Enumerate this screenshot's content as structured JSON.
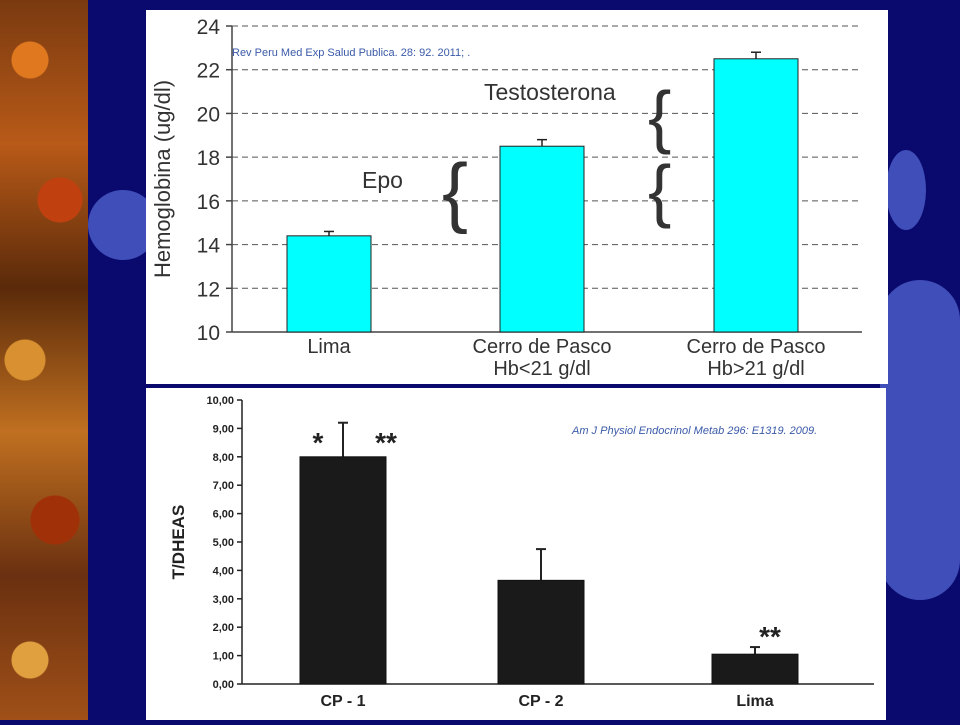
{
  "chart_data": [
    {
      "type": "bar",
      "citation": "Rev Peru Med Exp Salud Publica. 28: 92. 2011; .",
      "ylabel": "Hemoglobina (ug/dl)",
      "categories": [
        "Lima",
        "Cerro de Pasco\nHb<21 g/dl",
        "Cerro de Pasco\nHb>21 g/dl"
      ],
      "values": [
        14.4,
        18.5,
        22.5
      ],
      "errors": [
        0.2,
        0.3,
        0.3
      ],
      "ylim": [
        10,
        24
      ],
      "yticks": [
        10,
        12,
        14,
        16,
        18,
        20,
        22,
        24
      ],
      "grid": true,
      "bar_color": "#00ffff",
      "annotations": [
        "Epo",
        "Testosterona"
      ]
    },
    {
      "type": "bar",
      "citation": "Am J Physiol Endocrinol Metab 296: E1319. 2009.",
      "ylabel": "T/DHEAS",
      "categories": [
        "CP - 1",
        "CP - 2",
        "Lima"
      ],
      "values": [
        8.0,
        3.65,
        1.05
      ],
      "errors": [
        1.2,
        1.1,
        0.25
      ],
      "ylim": [
        0,
        10
      ],
      "yticks": [
        "0,00",
        "1,00",
        "2,00",
        "3,00",
        "4,00",
        "5,00",
        "6,00",
        "7,00",
        "8,00",
        "9,00",
        "10,00"
      ],
      "grid": false,
      "bar_color": "#1a1a1a",
      "annotations": [
        "*",
        "**",
        "**"
      ]
    }
  ]
}
